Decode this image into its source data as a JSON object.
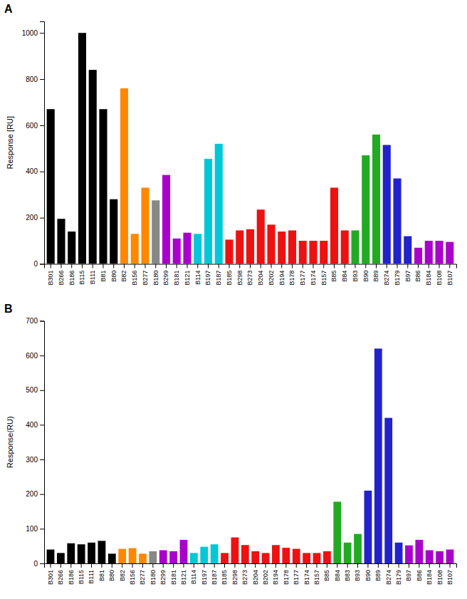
{
  "chart_data": [
    {
      "type": "bar",
      "title": "A",
      "categories": [
        "B301",
        "B266",
        "B186",
        "B115",
        "B111",
        "B81",
        "B80",
        "B82",
        "B156",
        "B277",
        "B180",
        "B299",
        "B181",
        "B121",
        "B114",
        "B197",
        "B187",
        "B185",
        "B298",
        "B273",
        "B204",
        "B202",
        "B194",
        "B178",
        "B177",
        "B174",
        "B157",
        "B85",
        "B84",
        "B93",
        "B90",
        "B89",
        "B274",
        "B179",
        "B97",
        "B86",
        "B184",
        "B108",
        "B107"
      ],
      "values": [
        670,
        195,
        140,
        1000,
        840,
        670,
        280,
        760,
        130,
        330,
        275,
        385,
        110,
        135,
        130,
        455,
        520,
        105,
        145,
        150,
        235,
        170,
        140,
        145,
        100,
        100,
        100,
        330,
        145,
        145,
        470,
        560,
        515,
        370,
        120,
        70,
        100,
        100,
        95
      ],
      "colors": [
        "#000000",
        "#000000",
        "#000000",
        "#000000",
        "#000000",
        "#000000",
        "#000000",
        "#ff8800",
        "#ff8800",
        "#ff8800",
        "#888888",
        "#aa00cc",
        "#aa00cc",
        "#aa00cc",
        "#00c8d8",
        "#00c8d8",
        "#00c8d8",
        "#ee1111",
        "#ee1111",
        "#ee1111",
        "#ee1111",
        "#ee1111",
        "#ee1111",
        "#ee1111",
        "#ee1111",
        "#ee1111",
        "#ee1111",
        "#ee1111",
        "#ee1111",
        "#22aa22",
        "#22aa22",
        "#22aa22",
        "#2222cc",
        "#2222cc",
        "#2222cc",
        "#aa00cc",
        "#aa00cc",
        "#aa00cc",
        "#aa00cc"
      ],
      "ylabel": "Response [RU]",
      "ylim": [
        0,
        1050
      ],
      "yticks": [
        0,
        200,
        400,
        600,
        800,
        1000
      ]
    },
    {
      "type": "bar",
      "title": "B",
      "categories": [
        "B301",
        "B266",
        "B186",
        "B115",
        "B111",
        "B81",
        "B80",
        "B82",
        "B156",
        "B277",
        "B180",
        "B299",
        "B181",
        "B121",
        "B114",
        "B197",
        "B187",
        "B185",
        "B298",
        "B273",
        "B204",
        "B202",
        "B194",
        "B178",
        "B177",
        "B174",
        "B157",
        "B85",
        "B84",
        "B83",
        "B93",
        "B90",
        "B89",
        "B274",
        "B179",
        "B97",
        "B86",
        "B184",
        "B108",
        "B107"
      ],
      "values": [
        40,
        30,
        58,
        55,
        60,
        65,
        28,
        42,
        44,
        28,
        35,
        38,
        35,
        68,
        30,
        48,
        55,
        30,
        75,
        53,
        35,
        30,
        53,
        45,
        42,
        30,
        30,
        35,
        178,
        60,
        85,
        210,
        620,
        420,
        60,
        52,
        68,
        38,
        35,
        40
      ],
      "colors": [
        "#000000",
        "#000000",
        "#000000",
        "#000000",
        "#000000",
        "#000000",
        "#000000",
        "#ff8800",
        "#ff8800",
        "#ff8800",
        "#888888",
        "#aa00cc",
        "#aa00cc",
        "#aa00cc",
        "#00c8d8",
        "#00c8d8",
        "#00c8d8",
        "#ee1111",
        "#ee1111",
        "#ee1111",
        "#ee1111",
        "#ee1111",
        "#ee1111",
        "#ee1111",
        "#ee1111",
        "#ee1111",
        "#ee1111",
        "#ee1111",
        "#22aa22",
        "#22aa22",
        "#22aa22",
        "#2222cc",
        "#2222cc",
        "#2222cc",
        "#2222cc",
        "#aa00cc",
        "#aa00cc",
        "#aa00cc",
        "#aa00cc",
        "#aa00cc"
      ],
      "ylabel": "Response(RU)",
      "ylim": [
        0,
        700
      ],
      "yticks": [
        0,
        100,
        200,
        300,
        400,
        500,
        600,
        700
      ]
    }
  ]
}
